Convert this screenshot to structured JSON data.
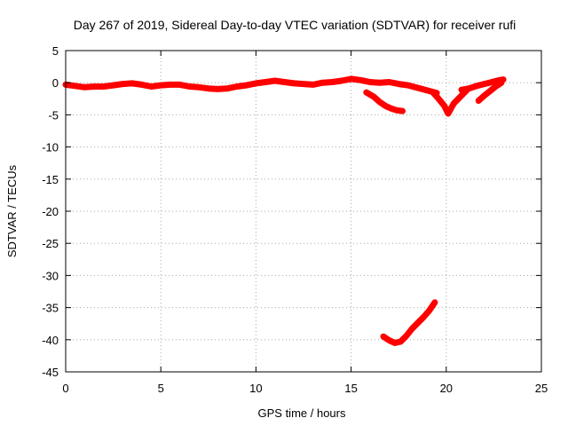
{
  "chart_data": {
    "type": "scatter",
    "title": "Day 267 of 2019, Sidereal Day-to-day VTEC variation (SDTVAR) for receiver rufi",
    "xlabel": "GPS time / hours",
    "ylabel": "SDTVAR / TECUs",
    "xlim": [
      0,
      25
    ],
    "ylim": [
      -45,
      5
    ],
    "xticks": [
      "0",
      "5",
      "10",
      "15",
      "20",
      "25"
    ],
    "yticks": [
      "5",
      "0",
      "-5",
      "-10",
      "-15",
      "-20",
      "-25",
      "-30",
      "-35",
      "-40",
      "-45"
    ],
    "grid": true,
    "series": [
      {
        "name": "main-band",
        "color": "#ff0000",
        "x": [
          0,
          0.5,
          1,
          1.5,
          2,
          2.5,
          3,
          3.5,
          4,
          4.5,
          5,
          5.5,
          6,
          6.5,
          7,
          7.5,
          8,
          8.5,
          9,
          9.5,
          10,
          10.5,
          11,
          11.5,
          12,
          12.5,
          13,
          13.5,
          14,
          14.5,
          15,
          15.5,
          16,
          16.5,
          17,
          17.5,
          18,
          18.5,
          19,
          19.5
        ],
        "y": [
          -0.3,
          -0.5,
          -0.7,
          -0.6,
          -0.6,
          -0.4,
          -0.2,
          -0.1,
          -0.3,
          -0.6,
          -0.4,
          -0.3,
          -0.3,
          -0.6,
          -0.7,
          -0.9,
          -1.0,
          -0.9,
          -0.6,
          -0.4,
          -0.1,
          0.1,
          0.3,
          0.1,
          -0.1,
          -0.2,
          -0.3,
          0.0,
          0.1,
          0.3,
          0.6,
          0.4,
          0.1,
          0.0,
          0.1,
          -0.2,
          -0.4,
          -0.8,
          -1.2,
          -1.6
        ]
      },
      {
        "name": "dip-near-16",
        "color": "#ff0000",
        "x": [
          15.8,
          16.2,
          16.5,
          16.8,
          17.1,
          17.4,
          17.7
        ],
        "y": [
          -1.5,
          -2.2,
          -3.0,
          -3.6,
          -4.0,
          -4.3,
          -4.4
        ]
      },
      {
        "name": "dip-near-20",
        "color": "#ff0000",
        "x": [
          19.3,
          19.6,
          19.9,
          20.1,
          20.4,
          20.8,
          21.1
        ],
        "y": [
          -1.5,
          -2.5,
          -3.6,
          -4.8,
          -3.2,
          -2.0,
          -1.1
        ]
      },
      {
        "name": "recovery-near-22",
        "color": "#ff0000",
        "x": [
          20.8,
          21.2,
          21.6,
          22.0,
          22.4,
          22.8,
          23.0
        ],
        "y": [
          -1.1,
          -0.9,
          -0.5,
          -0.2,
          0.1,
          0.4,
          0.5
        ]
      },
      {
        "name": "branch-21-23",
        "color": "#ff0000",
        "x": [
          21.7,
          22.0,
          22.3,
          22.6,
          22.9
        ],
        "y": [
          -2.8,
          -2.0,
          -1.3,
          -0.6,
          0.0
        ]
      },
      {
        "name": "lower-curve",
        "color": "#ff0000",
        "x": [
          16.7,
          17.0,
          17.3,
          17.6,
          17.9,
          18.2,
          18.5,
          18.8,
          19.1,
          19.4
        ],
        "y": [
          -39.5,
          -40.1,
          -40.5,
          -40.3,
          -39.4,
          -38.3,
          -37.4,
          -36.5,
          -35.5,
          -34.2
        ]
      }
    ]
  }
}
